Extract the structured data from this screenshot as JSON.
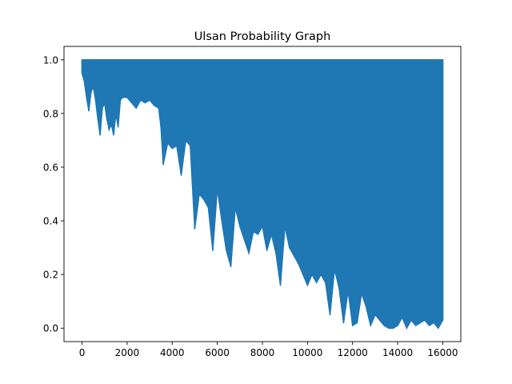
{
  "chart_data": {
    "type": "line",
    "title": "Ulsan Probability Graph",
    "xlabel": "",
    "ylabel": "",
    "xlim": [
      -800,
      16800
    ],
    "ylim": [
      -0.05,
      1.05
    ],
    "x_ticks": [
      0,
      2000,
      4000,
      6000,
      8000,
      10000,
      12000,
      14000,
      16000
    ],
    "x_tick_labels": [
      "0",
      "2000",
      "4000",
      "6000",
      "8000",
      "10000",
      "12000",
      "14000",
      "16000"
    ],
    "y_ticks": [
      0.0,
      0.2,
      0.4,
      0.6,
      0.8,
      1.0
    ],
    "y_tick_labels": [
      "0.0",
      "0.2",
      "0.4",
      "0.6",
      "0.8",
      "1.0"
    ],
    "grid": false,
    "series": [
      {
        "color": "#1f77b4",
        "upper_bound": 1.0,
        "x": [
          0,
          100,
          200,
          300,
          400,
          500,
          600,
          700,
          800,
          900,
          1000,
          1100,
          1200,
          1300,
          1400,
          1500,
          1600,
          1700,
          1800,
          2000,
          2200,
          2400,
          2600,
          2800,
          3000,
          3200,
          3400,
          3500,
          3600,
          3800,
          4000,
          4200,
          4400,
          4600,
          4800,
          5000,
          5200,
          5400,
          5600,
          5800,
          6000,
          6200,
          6400,
          6600,
          6800,
          7000,
          7200,
          7400,
          7600,
          7800,
          8000,
          8200,
          8400,
          8600,
          8800,
          9000,
          9200,
          9400,
          9600,
          9800,
          10000,
          10200,
          10400,
          10600,
          10800,
          11000,
          11200,
          11400,
          11600,
          11800,
          12000,
          12200,
          12400,
          12600,
          12800,
          13000,
          13200,
          13400,
          13600,
          13800,
          14000,
          14200,
          14400,
          14600,
          14800,
          15000,
          15200,
          15400,
          15600,
          15800,
          16000
        ],
        "min_values": [
          0.95,
          0.92,
          0.86,
          0.81,
          0.88,
          0.9,
          0.85,
          0.78,
          0.72,
          0.82,
          0.84,
          0.78,
          0.74,
          0.76,
          0.72,
          0.8,
          0.75,
          0.85,
          0.86,
          0.86,
          0.84,
          0.82,
          0.85,
          0.84,
          0.85,
          0.83,
          0.82,
          0.75,
          0.61,
          0.69,
          0.67,
          0.68,
          0.57,
          0.7,
          0.68,
          0.37,
          0.5,
          0.48,
          0.45,
          0.29,
          0.52,
          0.4,
          0.29,
          0.23,
          0.45,
          0.38,
          0.33,
          0.28,
          0.36,
          0.35,
          0.38,
          0.29,
          0.35,
          0.28,
          0.16,
          0.38,
          0.3,
          0.27,
          0.24,
          0.2,
          0.16,
          0.2,
          0.17,
          0.2,
          0.17,
          0.05,
          0.22,
          0.15,
          0.02,
          0.14,
          0.01,
          0.02,
          0.13,
          0.08,
          0.01,
          0.05,
          0.03,
          0.01,
          0.0,
          0.0,
          0.01,
          0.04,
          0.0,
          0.03,
          0.01,
          0.02,
          0.03,
          0.01,
          0.02,
          0.0,
          0.03
        ]
      }
    ]
  }
}
